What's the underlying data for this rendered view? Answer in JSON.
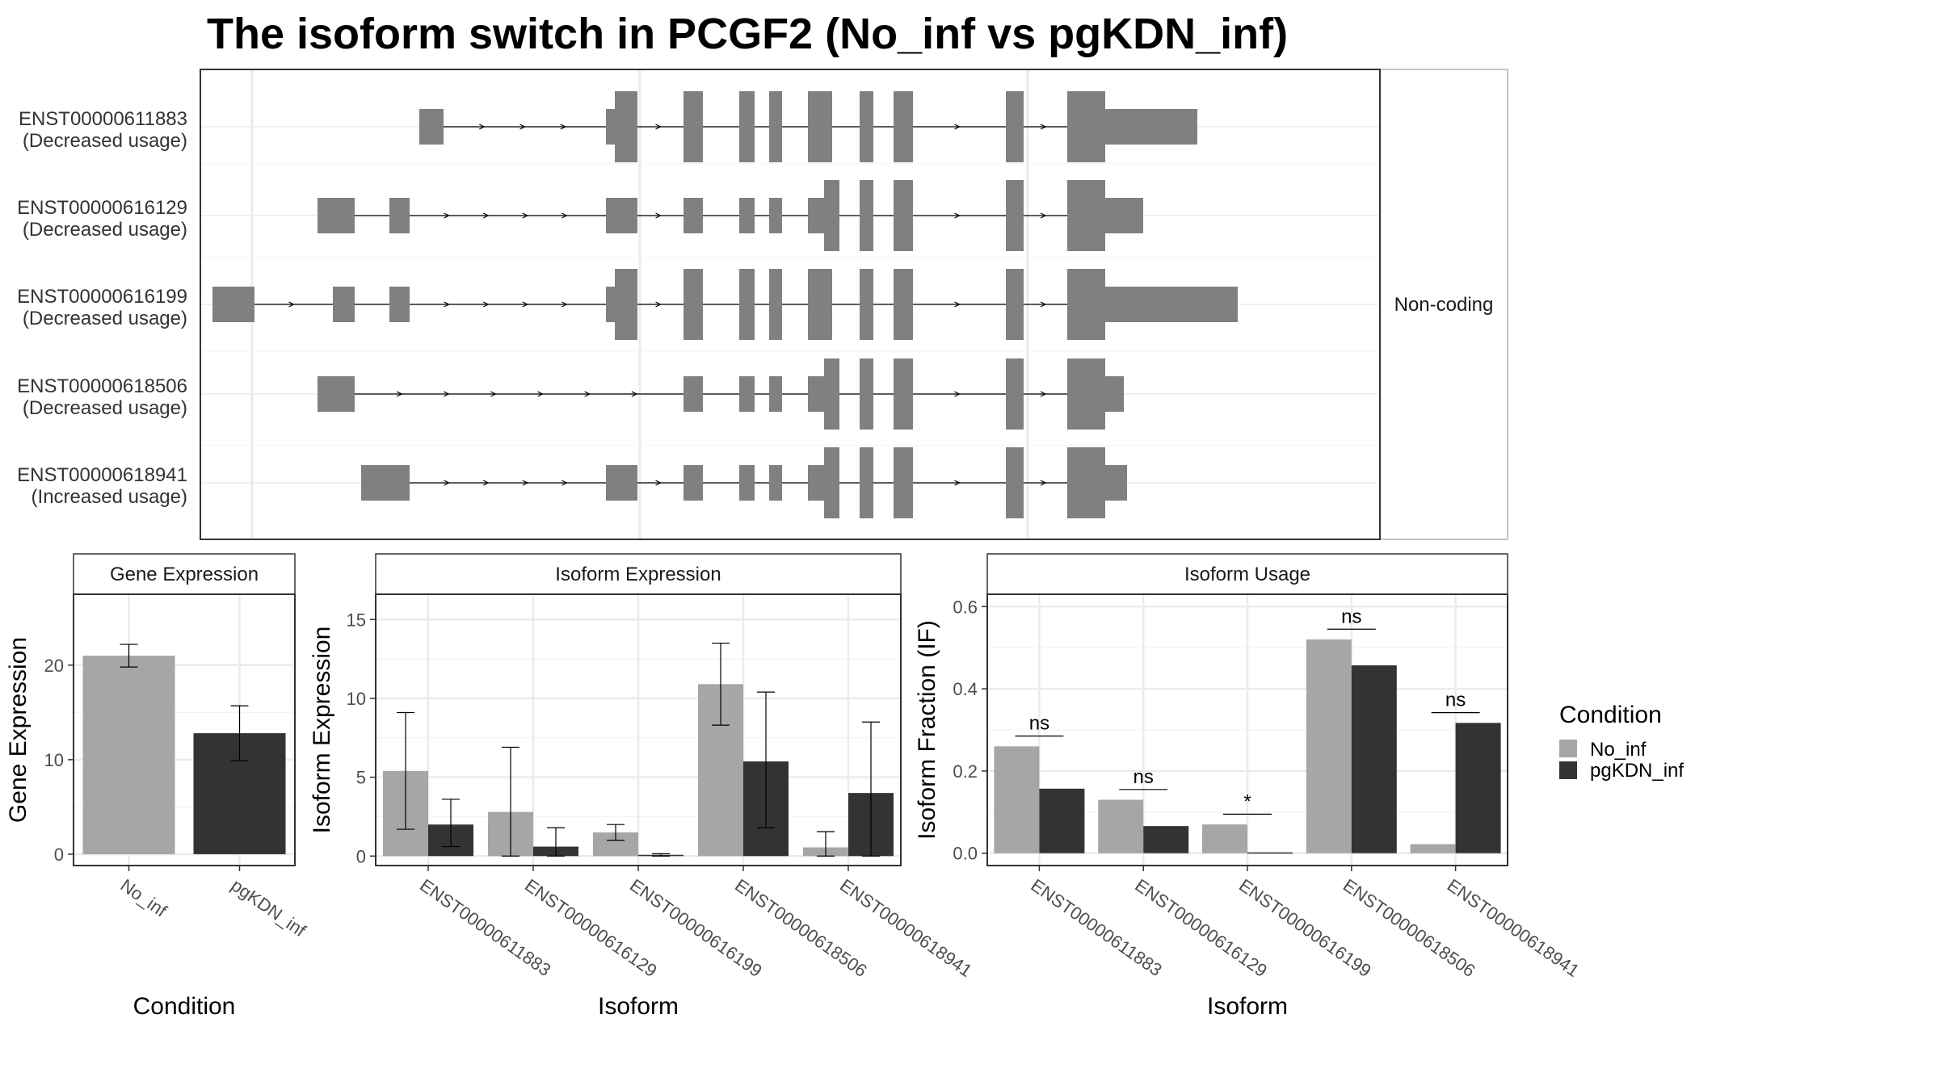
{
  "title": "The isoform switch in PCGF2 (No_inf vs pgKDN_inf)",
  "colors": {
    "No_inf": "#a6a6a6",
    "pgKDN_inf": "#333333",
    "exon": "#808080",
    "grid": "#ebebeb",
    "panel_border": "#333333",
    "strip_border": "#b3b3b3"
  },
  "structure_panel": {
    "facet_label": "Non-coding",
    "coordinate_domain": [
      0,
      1000
    ],
    "transcripts": [
      {
        "id": "ENST00000611883",
        "usage": "(Decreased usage)",
        "exons": [
          [
            271,
            301,
            "t"
          ],
          [
            502,
            513,
            "t"
          ],
          [
            513,
            541,
            "f"
          ],
          [
            598,
            622,
            "f"
          ],
          [
            667,
            686,
            "f"
          ],
          [
            704,
            720,
            "f"
          ],
          [
            752,
            782,
            "f"
          ],
          [
            816,
            833,
            "f"
          ],
          [
            858,
            882,
            "f"
          ],
          [
            997,
            1019,
            "f"
          ],
          [
            1073,
            1120,
            "f"
          ],
          [
            1120,
            1234,
            "t"
          ]
        ]
      },
      {
        "id": "ENST00000616129",
        "usage": "(Decreased usage)",
        "exons": [
          [
            145,
            191,
            "t"
          ],
          [
            234,
            259,
            "t"
          ],
          [
            502,
            541,
            "t"
          ],
          [
            598,
            622,
            "t"
          ],
          [
            667,
            686,
            "t"
          ],
          [
            704,
            720,
            "t"
          ],
          [
            752,
            772,
            "t"
          ],
          [
            772,
            791,
            "f"
          ],
          [
            816,
            833,
            "f"
          ],
          [
            858,
            882,
            "f"
          ],
          [
            997,
            1019,
            "f"
          ],
          [
            1073,
            1120,
            "f"
          ],
          [
            1120,
            1167,
            "t"
          ]
        ]
      },
      {
        "id": "ENST00000616199",
        "usage": "(Decreased usage)",
        "exons": [
          [
            15,
            67,
            "t"
          ],
          [
            164,
            191,
            "t"
          ],
          [
            234,
            259,
            "t"
          ],
          [
            502,
            513,
            "t"
          ],
          [
            513,
            541,
            "f"
          ],
          [
            598,
            622,
            "f"
          ],
          [
            667,
            686,
            "f"
          ],
          [
            704,
            720,
            "f"
          ],
          [
            752,
            782,
            "f"
          ],
          [
            816,
            833,
            "f"
          ],
          [
            858,
            882,
            "f"
          ],
          [
            997,
            1019,
            "f"
          ],
          [
            1073,
            1120,
            "f"
          ],
          [
            1120,
            1284,
            "t"
          ]
        ]
      },
      {
        "id": "ENST00000618506",
        "usage": "(Decreased usage)",
        "exons": [
          [
            145,
            191,
            "t"
          ],
          [
            598,
            622,
            "t"
          ],
          [
            667,
            686,
            "t"
          ],
          [
            704,
            720,
            "t"
          ],
          [
            752,
            772,
            "t"
          ],
          [
            772,
            791,
            "f"
          ],
          [
            816,
            833,
            "f"
          ],
          [
            858,
            882,
            "f"
          ],
          [
            997,
            1019,
            "f"
          ],
          [
            1073,
            1120,
            "f"
          ],
          [
            1120,
            1143,
            "t"
          ]
        ]
      },
      {
        "id": "ENST00000618941",
        "usage": "(Increased usage)",
        "exons": [
          [
            199,
            259,
            "t"
          ],
          [
            502,
            541,
            "t"
          ],
          [
            598,
            622,
            "t"
          ],
          [
            667,
            686,
            "t"
          ],
          [
            704,
            720,
            "t"
          ],
          [
            752,
            772,
            "t"
          ],
          [
            772,
            791,
            "f"
          ],
          [
            816,
            833,
            "f"
          ],
          [
            858,
            882,
            "f"
          ],
          [
            997,
            1019,
            "f"
          ],
          [
            1073,
            1120,
            "f"
          ],
          [
            1120,
            1147,
            "t"
          ]
        ]
      }
    ]
  },
  "chart_data": [
    {
      "type": "bar",
      "title": "Gene Expression",
      "xlabel": "Condition",
      "ylabel": "Gene Expression",
      "ylim": [
        -1.2,
        27.5
      ],
      "yticks": [
        0,
        10,
        20
      ],
      "categories": [
        "No_inf",
        "pgKDN_inf"
      ],
      "series": [
        {
          "name": "No_inf",
          "values": [
            21.0,
            null
          ],
          "err_low": [
            19.8,
            null
          ],
          "err_high": [
            22.2,
            null
          ]
        },
        {
          "name": "pgKDN_inf",
          "values": [
            null,
            12.8
          ],
          "err_low": [
            null,
            9.9
          ],
          "err_high": [
            null,
            15.7
          ]
        }
      ]
    },
    {
      "type": "bar",
      "title": "Isoform Expression",
      "xlabel": "Isoform",
      "ylabel": "Isoform Expression",
      "ylim": [
        -0.6,
        16.6
      ],
      "yticks": [
        0,
        5,
        10,
        15
      ],
      "categories": [
        "ENST00000611883",
        "ENST00000616129",
        "ENST00000616199",
        "ENST00000618506",
        "ENST00000618941"
      ],
      "series": [
        {
          "name": "No_inf",
          "values": [
            5.4,
            2.8,
            1.5,
            10.9,
            0.55
          ],
          "err_low": [
            1.7,
            0.0,
            1.0,
            8.3,
            0.0
          ],
          "err_high": [
            9.1,
            6.9,
            2.0,
            13.5,
            1.55
          ]
        },
        {
          "name": "pgKDN_inf",
          "values": [
            2.0,
            0.6,
            0.08,
            6.0,
            4.0
          ],
          "err_low": [
            0.6,
            0.0,
            0.0,
            1.8,
            0.0
          ],
          "err_high": [
            3.6,
            1.8,
            0.15,
            10.4,
            8.5
          ]
        }
      ]
    },
    {
      "type": "bar",
      "title": "Isoform Usage",
      "xlabel": "Isoform",
      "ylabel": "Isoform Fraction (IF)",
      "ylim": [
        -0.03,
        0.63
      ],
      "yticks": [
        0.0,
        0.2,
        0.4,
        0.6
      ],
      "ytick_labels": [
        "0.0",
        "0.2",
        "0.4",
        "0.6"
      ],
      "categories": [
        "ENST00000611883",
        "ENST00000616129",
        "ENST00000616199",
        "ENST00000618506",
        "ENST00000618941"
      ],
      "series": [
        {
          "name": "No_inf",
          "values": [
            0.26,
            0.13,
            0.07,
            0.52,
            0.022
          ]
        },
        {
          "name": "pgKDN_inf",
          "values": [
            0.157,
            0.066,
            0.002,
            0.457,
            0.317
          ]
        }
      ],
      "significance": [
        {
          "label": "ns",
          "y": 0.285
        },
        {
          "label": "ns",
          "y": 0.155
        },
        {
          "label": "*",
          "y": 0.095
        },
        {
          "label": "ns",
          "y": 0.545
        },
        {
          "label": "ns",
          "y": 0.342
        }
      ]
    }
  ],
  "legend": {
    "title": "Condition",
    "items": [
      {
        "label": "No_inf",
        "color": "#a6a6a6"
      },
      {
        "label": "pgKDN_inf",
        "color": "#333333"
      }
    ]
  }
}
